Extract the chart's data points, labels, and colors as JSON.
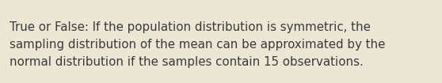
{
  "text": "True or False: If the population distribution is symmetric, the\nsampling distribution of the mean can be approximated by the\nnormal distribution if the samples contain 15 observations.",
  "background_color": "#ece6d5",
  "text_color": "#3a3a3a",
  "font_size": 10.8,
  "font_family": "DejaVu Sans",
  "fig_width": 5.58,
  "fig_height": 1.05,
  "dpi": 100
}
